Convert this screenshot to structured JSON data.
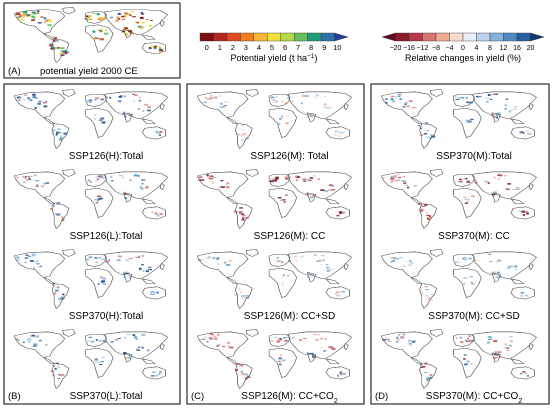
{
  "top_panel": {
    "letter": "(A)",
    "label": "potential yield 2000 CE"
  },
  "legend_yield": {
    "ticks": [
      "0",
      "1",
      "2",
      "3",
      "4",
      "5",
      "6",
      "7",
      "8",
      "9",
      "10"
    ],
    "label_main": "Potential yield (t ha",
    "label_sup": "−1",
    "label_close": ")",
    "colors": [
      "#7f0c10",
      "#b3271f",
      "#dd4a1f",
      "#f07e1f",
      "#f7b637",
      "#f2e13a",
      "#b5d849",
      "#64bf5e",
      "#1e9e78",
      "#2a72a8",
      "#2c3c97"
    ]
  },
  "legend_change": {
    "ticks": [
      "−20",
      "−16",
      "−12",
      "−8",
      "−4",
      "0",
      "4",
      "8",
      "12",
      "16",
      "20"
    ],
    "label": "Relative changes in yield (%)",
    "colors": [
      "#5b0a1f",
      "#8a1a2b",
      "#b7374a",
      "#d8746f",
      "#eeaa92",
      "#f8dccd",
      "#e6eef7",
      "#b9d3ea",
      "#84b3d9",
      "#4d89c2",
      "#2a5e9f",
      "#0f3a75"
    ]
  },
  "groups": [
    {
      "letter": "(B)",
      "panels": [
        {
          "label": "SSP126(H):Total",
          "scheme": "blue"
        },
        {
          "label": "SSP126(L):Total",
          "scheme": "mixed"
        },
        {
          "label": "SSP370(H):Total",
          "scheme": "blue"
        },
        {
          "label": "SSP370(L):Total",
          "scheme": "blue"
        }
      ]
    },
    {
      "letter": "(C)",
      "panels": [
        {
          "label": "SSP126(M): Total",
          "scheme": "light"
        },
        {
          "label": "SSP126(M): CC",
          "scheme": "red"
        },
        {
          "label": "SSP126(M): CC+SD",
          "scheme": "light"
        },
        {
          "label": "SSP126(M): CC+CO",
          "sub": "2",
          "scheme": "mixed"
        }
      ]
    },
    {
      "letter": "(D)",
      "panels": [
        {
          "label": "SSP370(M):Total",
          "scheme": "blue"
        },
        {
          "label": "SSP370(M): CC",
          "scheme": "red"
        },
        {
          "label": "SSP370(M): CC+SD",
          "scheme": "light"
        },
        {
          "label": "SSP370(M): CC+CO",
          "sub": "2",
          "scheme": "mixed"
        }
      ]
    }
  ]
}
